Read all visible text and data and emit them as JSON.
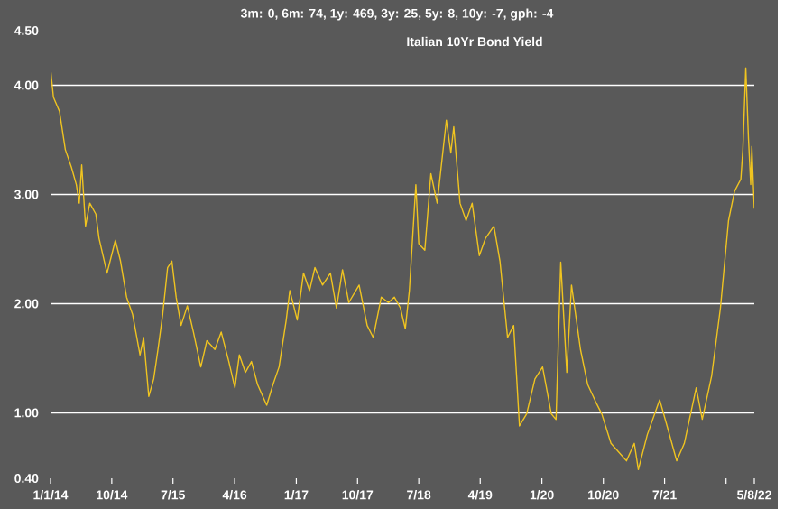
{
  "chart_data": {
    "type": "line",
    "title": "Italian 10Yr Bond Yield",
    "subtitle": "3m: 0,   6m: 74,   1y: 469,   3y: 25,   5y: 8,   10y: -7,   gph: -4",
    "color": "#f0c420",
    "grid": "y",
    "xlim": [
      "2014-01-01",
      "2022-08-05"
    ],
    "xticks": [
      {
        "value": "2014-01-01",
        "label": "1/1/14"
      },
      {
        "value": "2014-10-01",
        "label": "10/14"
      },
      {
        "value": "2015-07-01",
        "label": "7/15"
      },
      {
        "value": "2016-04-01",
        "label": "4/16"
      },
      {
        "value": "2017-01-01",
        "label": "1/17"
      },
      {
        "value": "2017-10-01",
        "label": "10/17"
      },
      {
        "value": "2018-07-01",
        "label": "7/18"
      },
      {
        "value": "2019-04-01",
        "label": "4/19"
      },
      {
        "value": "2020-01-01",
        "label": "1/20"
      },
      {
        "value": "2020-10-01",
        "label": "10/20"
      },
      {
        "value": "2021-07-01",
        "label": "7/21"
      },
      {
        "value": "2022-04-01",
        "label": null
      },
      {
        "value": "2022-08-05",
        "label": "5/8/22"
      }
    ],
    "ylim": [
      0.4,
      4.5
    ],
    "yticks": [
      {
        "value": 0.4,
        "label": "0.40"
      },
      {
        "value": 1,
        "label": "1.00"
      },
      {
        "value": 2,
        "label": "2.00"
      },
      {
        "value": 3,
        "label": "3.00"
      },
      {
        "value": 4,
        "label": "4.00"
      },
      {
        "value": 4.5,
        "label": "4.50"
      }
    ],
    "x": [
      "2014-01-02",
      "2014-01-14",
      "2014-02-10",
      "2014-03-08",
      "2014-04-04",
      "2014-04-26",
      "2014-05-09",
      "2014-05-20",
      "2014-06-06",
      "2014-06-25",
      "2014-07-22",
      "2014-08-05",
      "2014-09-10",
      "2014-10-17",
      "2014-11-09",
      "2014-12-06",
      "2015-01-02",
      "2015-02-04",
      "2015-02-20",
      "2015-03-15",
      "2015-04-06",
      "2015-04-25",
      "2015-05-16",
      "2015-06-07",
      "2015-06-26",
      "2015-07-15",
      "2015-08-06",
      "2015-09-03",
      "2015-09-30",
      "2015-11-02",
      "2015-11-29",
      "2016-01-04",
      "2016-02-01",
      "2016-03-06",
      "2016-04-02",
      "2016-04-22",
      "2016-05-19",
      "2016-06-15",
      "2016-07-12",
      "2016-08-22",
      "2016-09-19",
      "2016-10-16",
      "2016-11-17",
      "2016-12-03",
      "2017-01-05",
      "2017-02-02",
      "2017-03-01",
      "2017-03-25",
      "2017-04-28",
      "2017-06-02",
      "2017-06-29",
      "2017-07-26",
      "2017-08-23",
      "2017-10-08",
      "2017-11-13",
      "2017-12-10",
      "2018-01-15",
      "2018-02-16",
      "2018-03-14",
      "2018-04-10",
      "2018-05-02",
      "2018-05-20",
      "2018-06-18",
      "2018-07-01",
      "2018-07-28",
      "2018-08-24",
      "2018-09-21",
      "2018-11-01",
      "2018-11-21",
      "2018-12-04",
      "2019-01-01",
      "2019-01-28",
      "2019-02-24",
      "2019-03-28",
      "2019-04-25",
      "2019-06-01",
      "2019-06-28",
      "2019-08-01",
      "2019-08-28",
      "2019-09-23",
      "2019-10-25",
      "2019-12-01",
      "2020-01-04",
      "2020-02-12",
      "2020-03-04",
      "2020-03-25",
      "2020-04-21",
      "2020-05-12",
      "2020-06-21",
      "2020-07-23",
      "2020-08-28",
      "2020-09-24",
      "2020-11-04",
      "2021-01-12",
      "2021-02-16",
      "2021-03-06",
      "2021-04-15",
      "2021-06-09",
      "2021-07-12",
      "2021-08-24",
      "2021-09-27",
      "2021-11-19",
      "2021-12-16",
      "2022-01-27",
      "2022-03-07",
      "2022-04-12",
      "2022-05-09",
      "2022-06-06",
      "2022-06-15",
      "2022-06-28",
      "2022-07-10",
      "2022-07-20",
      "2022-07-25",
      "2022-08-05"
    ],
    "values": [
      4.13,
      3.89,
      3.76,
      3.41,
      3.25,
      3.09,
      2.92,
      3.27,
      2.71,
      2.92,
      2.82,
      2.6,
      2.28,
      2.58,
      2.39,
      2.06,
      1.9,
      1.53,
      1.69,
      1.15,
      1.31,
      1.58,
      1.9,
      2.33,
      2.39,
      2.06,
      1.8,
      1.98,
      1.74,
      1.42,
      1.66,
      1.58,
      1.74,
      1.47,
      1.23,
      1.53,
      1.37,
      1.47,
      1.26,
      1.07,
      1.26,
      1.42,
      1.85,
      2.12,
      1.85,
      2.28,
      2.12,
      2.33,
      2.17,
      2.28,
      1.96,
      2.31,
      2.01,
      2.17,
      1.8,
      1.69,
      2.06,
      2.01,
      2.06,
      1.96,
      1.77,
      2.12,
      3.09,
      2.55,
      2.49,
      3.19,
      2.92,
      3.68,
      3.38,
      3.62,
      2.92,
      2.76,
      2.92,
      2.44,
      2.6,
      2.71,
      2.39,
      1.69,
      1.8,
      0.88,
      0.99,
      1.31,
      1.42,
      0.99,
      0.94,
      2.38,
      1.37,
      2.17,
      1.58,
      1.26,
      1.1,
      0.99,
      0.72,
      0.56,
      0.72,
      0.48,
      0.8,
      1.12,
      0.88,
      0.56,
      0.72,
      1.23,
      0.94,
      1.34,
      1.96,
      2.76,
      3.03,
      3.14,
      3.41,
      4.16,
      3.51,
      3.09,
      3.44,
      2.87
    ]
  }
}
